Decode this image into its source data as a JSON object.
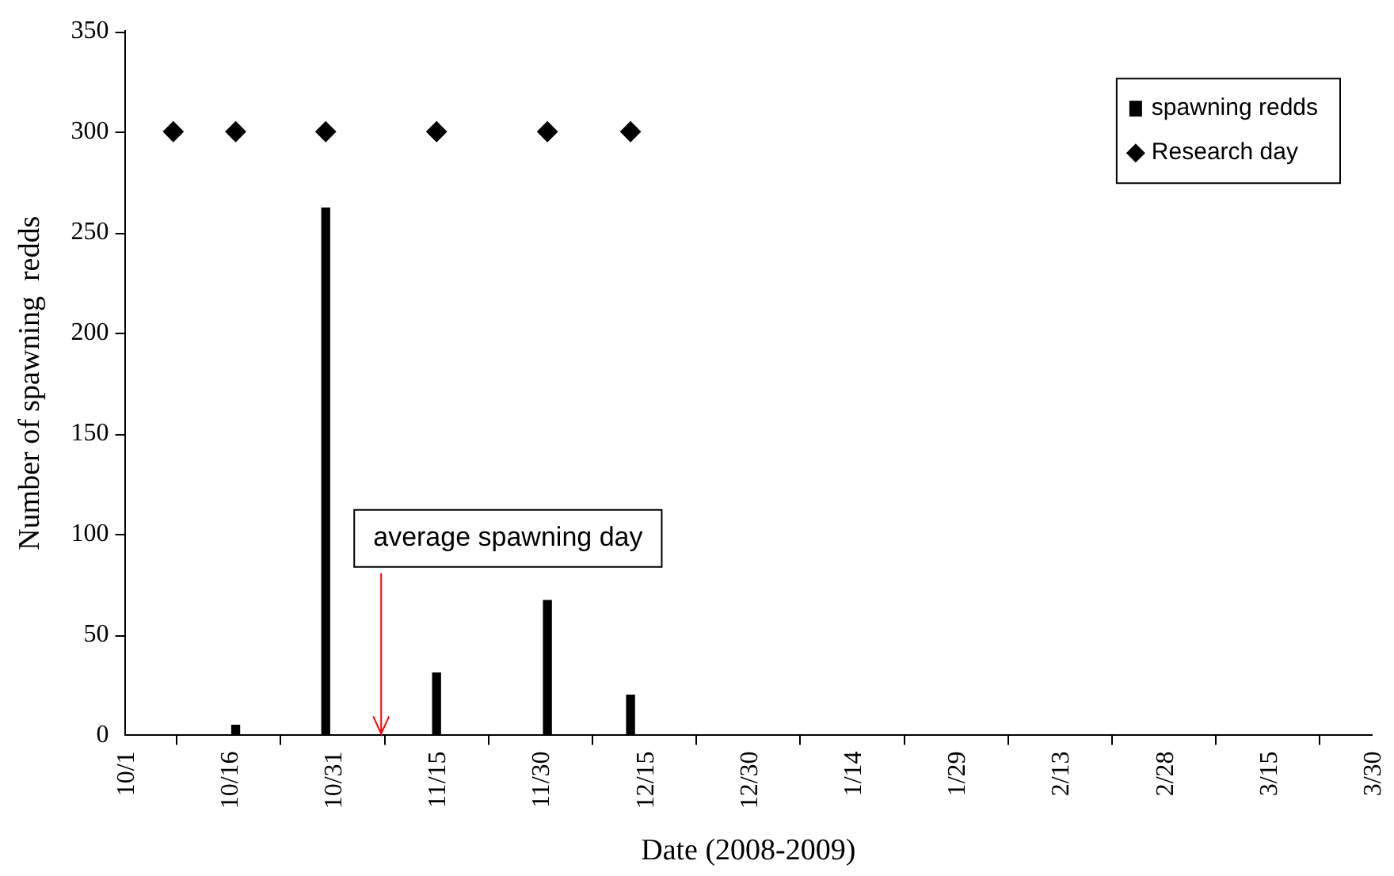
{
  "chart_data": {
    "type": "bar",
    "xlabel": "Date (2008-2009)",
    "ylabel": "Number of spawning  redds",
    "xlim": [
      "2008-10-01",
      "2009-03-30"
    ],
    "xticks": [
      {
        "value": "2008-10-01",
        "label": "10/1"
      },
      {
        "value": "2008-10-16",
        "label": "10/16"
      },
      {
        "value": "2008-10-31",
        "label": "10/31"
      },
      {
        "value": "2008-11-15",
        "label": "11/15"
      },
      {
        "value": "2008-11-30",
        "label": "11/30"
      },
      {
        "value": "2008-12-15",
        "label": "12/15"
      },
      {
        "value": "2008-12-30",
        "label": "12/30"
      },
      {
        "value": "2009-01-14",
        "label": "1/14"
      },
      {
        "value": "2009-01-29",
        "label": "1/29"
      },
      {
        "value": "2009-02-13",
        "label": "2/13"
      },
      {
        "value": "2009-02-28",
        "label": "2/28"
      },
      {
        "value": "2009-03-15",
        "label": "3/15"
      },
      {
        "value": "2009-03-30",
        "label": "3/30"
      }
    ],
    "ylim": [
      0,
      350
    ],
    "yticks": [
      0,
      50,
      100,
      150,
      200,
      250,
      300,
      350
    ],
    "series": [
      {
        "name": "spawning redds",
        "color": "#000000",
        "x": [
          "2008-10-17",
          "2008-10-30",
          "2008-11-15",
          "2008-12-01",
          "2008-12-13"
        ],
        "values": [
          5,
          262,
          31,
          67,
          20
        ]
      },
      {
        "name": "Research day",
        "type": "scatter",
        "color": "#000000",
        "marker": "diamond",
        "x": [
          "2008-10-08",
          "2008-10-17",
          "2008-10-30",
          "2008-11-15",
          "2008-12-01",
          "2008-12-13"
        ],
        "values": [
          300,
          300,
          300,
          300,
          300,
          300
        ]
      }
    ],
    "ref_lines": [
      {
        "axis": "x",
        "value": "2008-11-07",
        "label": "average spawning day",
        "color": "#ff0000"
      }
    ],
    "legend": "top right",
    "grid": false
  }
}
